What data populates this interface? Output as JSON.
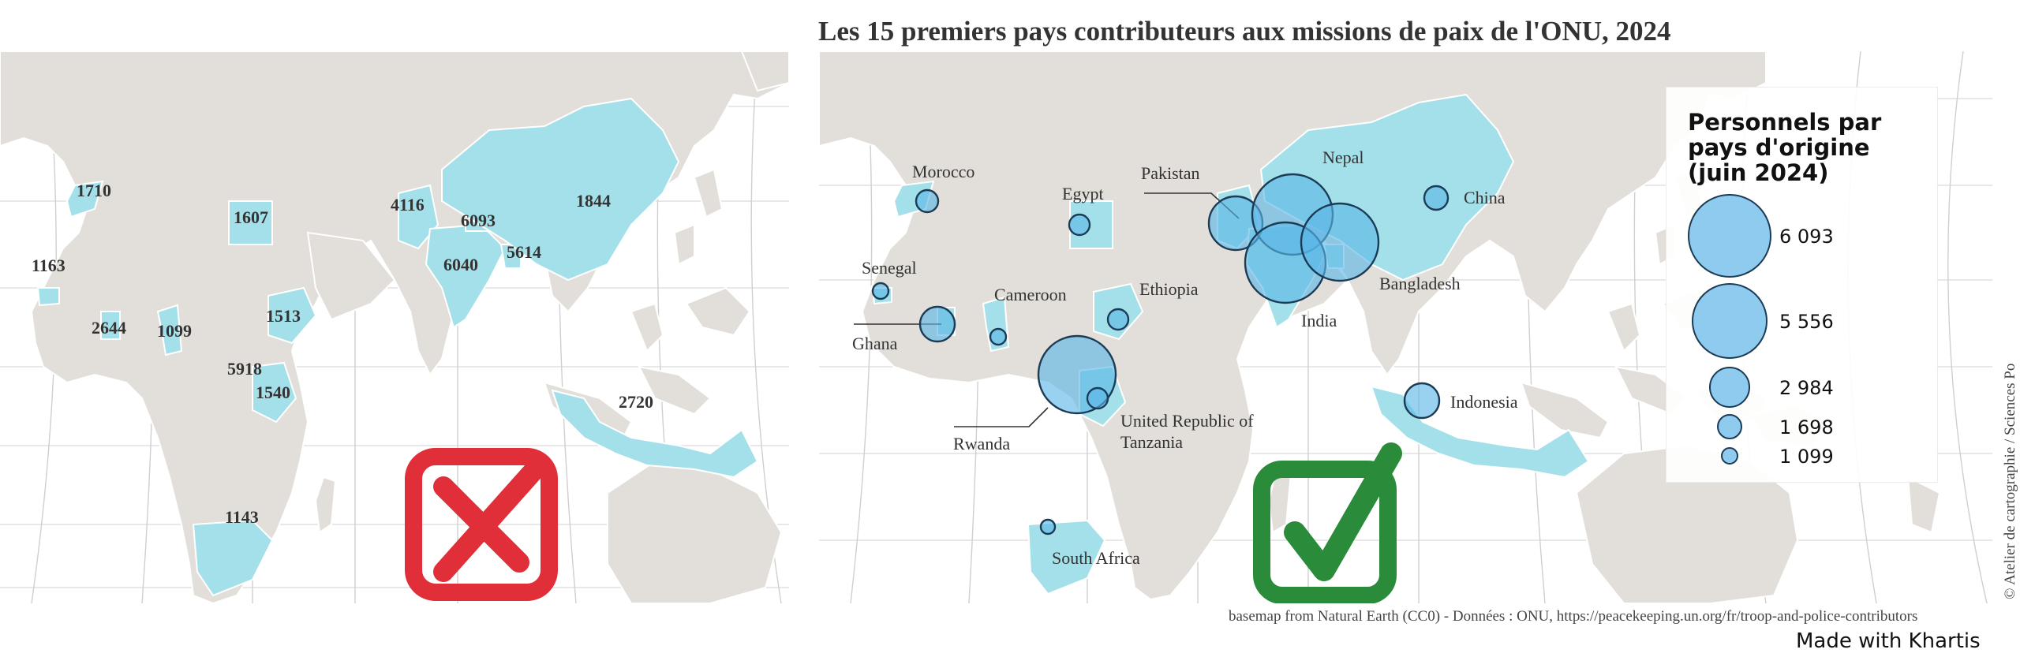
{
  "title": "Les 15 premiers pays contributeurs aux missions de paix de l'ONU, 2024",
  "left_map": {
    "values": [
      {
        "country": "Morocco",
        "label": "1710"
      },
      {
        "country": "Egypt",
        "label": "1607"
      },
      {
        "country": "Senegal",
        "label": "1163"
      },
      {
        "country": "Ghana",
        "label": "2644"
      },
      {
        "country": "Cameroon",
        "label": "1099"
      },
      {
        "country": "Ethiopia",
        "label": "1513"
      },
      {
        "country": "Rwanda",
        "label": "5918"
      },
      {
        "country": "United Republic of Tanzania",
        "label": "1540"
      },
      {
        "country": "South Africa",
        "label": "1143"
      },
      {
        "country": "Pakistan",
        "label": "4116"
      },
      {
        "country": "Nepal",
        "label": "6093"
      },
      {
        "country": "India",
        "label": "6040"
      },
      {
        "country": "Bangladesh",
        "label": "5614"
      },
      {
        "country": "China",
        "label": "1844"
      },
      {
        "country": "Indonesia",
        "label": "2720"
      }
    ],
    "verdict": "incorrect",
    "verdict_icon": "cross-box-icon",
    "verdict_color": "#e12f3a"
  },
  "right_map": {
    "country_labels": [
      {
        "name": "Morocco"
      },
      {
        "name": "Egypt"
      },
      {
        "name": "Pakistan"
      },
      {
        "name": "Nepal"
      },
      {
        "name": "China"
      },
      {
        "name": "Senegal"
      },
      {
        "name": "Cameroon"
      },
      {
        "name": "Ethiopia"
      },
      {
        "name": "Ghana"
      },
      {
        "name": "India"
      },
      {
        "name": "Bangladesh"
      },
      {
        "name": "United Republic of"
      },
      {
        "name": "Tanzania"
      },
      {
        "name": "Rwanda"
      },
      {
        "name": "Indonesia"
      },
      {
        "name": "South Africa"
      }
    ],
    "verdict": "correct",
    "verdict_icon": "check-box-icon",
    "verdict_color": "#2a8c3a",
    "bubble_color": "#5bb6e6"
  },
  "legend": {
    "title": "Personnels par pays d'origine (juin 2024)",
    "items": [
      {
        "label": "6 093",
        "value": 6093
      },
      {
        "label": "5 556",
        "value": 5556
      },
      {
        "label": "2 984",
        "value": 2984
      },
      {
        "label": "1 698",
        "value": 1698
      },
      {
        "label": "1 099",
        "value": 1099
      }
    ]
  },
  "source": "basemap from Natural Earth (CC0) - Données : ONU, https://peacekeeping.un.org/fr/troop-and-police-contributors",
  "made_with": "Made with Khartis",
  "credit": "© Atelier de cartographie / Sciences Po",
  "colors": {
    "land": "#e2dfda",
    "highlight": "#a4e0ea",
    "bubble": "#5bb6e6",
    "text": "#333333"
  }
}
